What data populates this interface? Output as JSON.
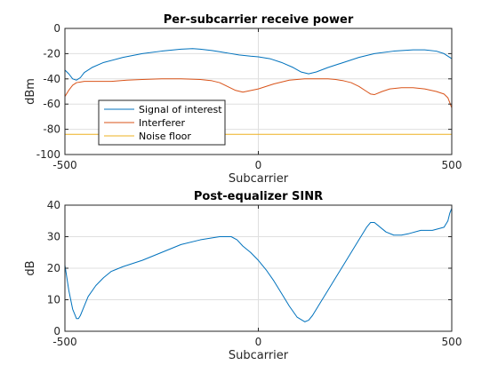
{
  "chart_data": [
    {
      "type": "line",
      "title": "Per-subcarrier receive power",
      "xlabel": "Subcarrier",
      "ylabel": "dBm",
      "xlim": [
        -500,
        500
      ],
      "ylim": [
        -100,
        0
      ],
      "xticks": [
        -500,
        0,
        500
      ],
      "yticks": [
        -100,
        -80,
        -60,
        -40,
        -20,
        0
      ],
      "grid": true,
      "legend": "bottom-left",
      "series": [
        {
          "name": "Signal of interest",
          "color": "#0072BD",
          "x": [
            -500,
            -490,
            -480,
            -470,
            -460,
            -450,
            -430,
            -400,
            -350,
            -300,
            -250,
            -200,
            -170,
            -150,
            -120,
            -100,
            -80,
            -50,
            -20,
            0,
            30,
            60,
            90,
            110,
            130,
            150,
            180,
            220,
            260,
            300,
            350,
            400,
            430,
            460,
            480,
            500
          ],
          "y": [
            -33,
            -36,
            -40,
            -41,
            -39,
            -35,
            -31,
            -27,
            -23,
            -20,
            -18,
            -16.5,
            -16,
            -16.5,
            -17.5,
            -18.5,
            -19.5,
            -21,
            -22,
            -22.5,
            -24,
            -27,
            -31,
            -34.5,
            -36,
            -34.5,
            -31,
            -27,
            -23,
            -20,
            -18,
            -17,
            -17,
            -18,
            -20,
            -24
          ]
        },
        {
          "name": "Interferer",
          "color": "#D95319",
          "x": [
            -500,
            -490,
            -480,
            -470,
            -460,
            -450,
            -420,
            -380,
            -340,
            -300,
            -250,
            -200,
            -150,
            -120,
            -100,
            -80,
            -60,
            -40,
            0,
            40,
            80,
            120,
            150,
            180,
            200,
            220,
            240,
            260,
            280,
            290,
            300,
            320,
            340,
            370,
            400,
            430,
            460,
            480,
            490,
            500
          ],
          "y": [
            -54,
            -49,
            -45,
            -43,
            -42.5,
            -42,
            -42,
            -42,
            -41,
            -40.5,
            -40,
            -40,
            -40.5,
            -41.5,
            -43,
            -46,
            -49,
            -50.5,
            -48,
            -44,
            -41,
            -40,
            -40,
            -40,
            -40.5,
            -41.5,
            -43,
            -46,
            -50,
            -52,
            -52.5,
            -50,
            -48,
            -47,
            -47,
            -48,
            -50,
            -52,
            -55,
            -63
          ]
        },
        {
          "name": "Noise floor",
          "color": "#EDB120",
          "x": [
            -500,
            500
          ],
          "y": [
            -84,
            -84
          ]
        }
      ]
    },
    {
      "type": "line",
      "title": "Post-equalizer SINR",
      "xlabel": "Subcarrier",
      "ylabel": "dB",
      "xlim": [
        -500,
        500
      ],
      "ylim": [
        0,
        40
      ],
      "xticks": [
        -500,
        0,
        500
      ],
      "yticks": [
        0,
        10,
        20,
        30,
        40
      ],
      "grid": true,
      "series": [
        {
          "color": "#0072BD",
          "x": [
            -500,
            -495,
            -490,
            -480,
            -470,
            -465,
            -460,
            -450,
            -440,
            -420,
            -400,
            -380,
            -350,
            -300,
            -250,
            -200,
            -150,
            -100,
            -70,
            -55,
            -40,
            -20,
            0,
            20,
            40,
            60,
            80,
            100,
            120,
            130,
            140,
            160,
            180,
            200,
            220,
            240,
            260,
            280,
            290,
            300,
            310,
            330,
            350,
            370,
            390,
            420,
            450,
            480,
            490,
            495,
            500
          ],
          "y": [
            21,
            17,
            13,
            7,
            4,
            4,
            5,
            8,
            11,
            14.5,
            17,
            19,
            20.5,
            22.5,
            25,
            27.5,
            29,
            30,
            30,
            29,
            27,
            25,
            22.5,
            19.5,
            16,
            12,
            8,
            4.5,
            3,
            3.5,
            5,
            9,
            13,
            17,
            21,
            25,
            29,
            33,
            34.5,
            34.5,
            33.5,
            31.5,
            30.5,
            30.5,
            31,
            32,
            32,
            33,
            35,
            37.5,
            39
          ]
        }
      ]
    }
  ]
}
